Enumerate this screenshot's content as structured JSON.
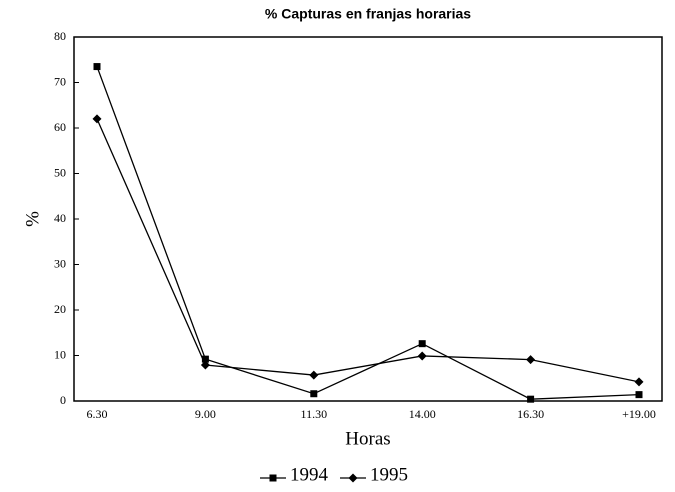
{
  "chart_data": {
    "type": "line",
    "title": "% Capturas en franjas horarias",
    "x_label": "Horas",
    "y_label": "%",
    "categories": [
      "6.30",
      "9.00",
      "11.30",
      "14.00",
      "16.30",
      "+19.00"
    ],
    "series": [
      {
        "name": "1994",
        "color": "#000000",
        "marker": "square",
        "values": [
          73.5,
          9.2,
          1.6,
          12.6,
          0.4,
          1.4
        ]
      },
      {
        "name": "1995",
        "color": "#000000",
        "marker": "diamond",
        "values": [
          62,
          7.9,
          5.7,
          9.9,
          9.1,
          4.2
        ]
      }
    ],
    "ylim": [
      0,
      80
    ],
    "yticks": [
      0,
      10,
      20,
      30,
      40,
      50,
      60,
      70,
      80
    ],
    "grid": false,
    "legend": "bottom"
  }
}
